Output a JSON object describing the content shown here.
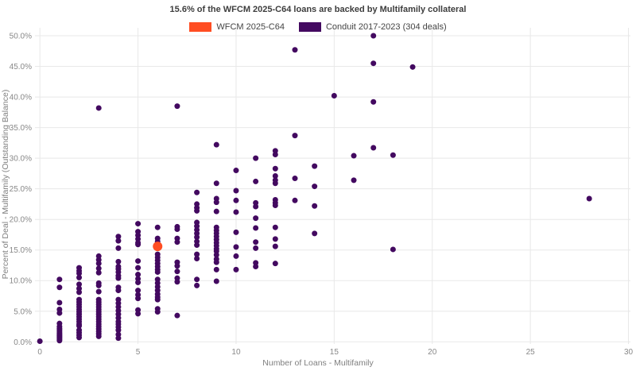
{
  "title": "15.6% of the WFCM 2025-C64 loans are backed by Multifamily collateral",
  "legend": {
    "items": [
      {
        "label": "WFCM 2025-C64",
        "color": "#ff4d22"
      },
      {
        "label": "Conduit 2017-2023 (304 deals)",
        "color": "#430960"
      }
    ]
  },
  "colors": {
    "grid": "#e8e8e8",
    "tick_text": "#888888",
    "background": "#ffffff"
  },
  "chart_data": {
    "type": "scatter",
    "title": "15.6% of the WFCM 2025-C64 loans are backed by Multifamily collateral",
    "xlabel": "Number of Loans - Multifamily",
    "ylabel": "Percent of Deal - Multifamily (Outstanding Balance)",
    "xlim": [
      0,
      30
    ],
    "ylim": [
      0,
      50
    ],
    "grid": true,
    "legend_position": "top-center",
    "x_ticks": [
      0,
      5,
      10,
      15,
      20,
      25,
      30
    ],
    "y_ticks": [
      0,
      5,
      10,
      15,
      20,
      25,
      30,
      35,
      40,
      45,
      50
    ],
    "y_tick_labels": [
      "0.0%",
      "5.0%",
      "10.0%",
      "15.0%",
      "20.0%",
      "25.0%",
      "30.0%",
      "35.0%",
      "40.0%",
      "45.0%",
      "50.0%"
    ],
    "series": [
      {
        "name": "Conduit 2017-2023 (304 deals)",
        "color": "#430960",
        "marker_diameter": 7,
        "points": [
          [
            0,
            0.1
          ],
          [
            1,
            10.2
          ],
          [
            1,
            8.9
          ],
          [
            1,
            6.4
          ],
          [
            1,
            5.3
          ],
          [
            1,
            4.7
          ],
          [
            1,
            3.0
          ],
          [
            1,
            2.5
          ],
          [
            1,
            2.2
          ],
          [
            1,
            2.0
          ],
          [
            1,
            1.8
          ],
          [
            1,
            1.6
          ],
          [
            1,
            1.4
          ],
          [
            1,
            1.2
          ],
          [
            1,
            1.0
          ],
          [
            1,
            0.8
          ],
          [
            1,
            0.6
          ],
          [
            1,
            0.4
          ],
          [
            1,
            0.2
          ],
          [
            2,
            12.1
          ],
          [
            2,
            11.6
          ],
          [
            2,
            11.2
          ],
          [
            2,
            10.5
          ],
          [
            2,
            9.4
          ],
          [
            2,
            8.7
          ],
          [
            2,
            8.1
          ],
          [
            2,
            6.9
          ],
          [
            2,
            6.5
          ],
          [
            2,
            6.1
          ],
          [
            2,
            5.7
          ],
          [
            2,
            5.3
          ],
          [
            2,
            4.9
          ],
          [
            2,
            4.5
          ],
          [
            2,
            4.1
          ],
          [
            2,
            3.7
          ],
          [
            2,
            3.3
          ],
          [
            2,
            2.9
          ],
          [
            2,
            2.6
          ],
          [
            2,
            1.9
          ],
          [
            2,
            1.5
          ],
          [
            2,
            1.1
          ],
          [
            2,
            0.7
          ],
          [
            3,
            38.2
          ],
          [
            3,
            14.0
          ],
          [
            3,
            13.4
          ],
          [
            3,
            12.8
          ],
          [
            3,
            12.0
          ],
          [
            3,
            11.3
          ],
          [
            3,
            9.6
          ],
          [
            3,
            9.2
          ],
          [
            3,
            8.2
          ],
          [
            3,
            6.9
          ],
          [
            3,
            6.5
          ],
          [
            3,
            6.1
          ],
          [
            3,
            5.7
          ],
          [
            3,
            5.3
          ],
          [
            3,
            4.9
          ],
          [
            3,
            4.5
          ],
          [
            3,
            4.1
          ],
          [
            3,
            3.7
          ],
          [
            3,
            3.3
          ],
          [
            3,
            2.9
          ],
          [
            3,
            2.5
          ],
          [
            3,
            2.1
          ],
          [
            3,
            1.7
          ],
          [
            3,
            1.3
          ],
          [
            3,
            0.9
          ],
          [
            4,
            17.2
          ],
          [
            4,
            16.5
          ],
          [
            4,
            15.3
          ],
          [
            4,
            13.1
          ],
          [
            4,
            12.3
          ],
          [
            4,
            11.9
          ],
          [
            4,
            11.4
          ],
          [
            4,
            10.8
          ],
          [
            4,
            10.4
          ],
          [
            4,
            8.9
          ],
          [
            4,
            8.4
          ],
          [
            4,
            6.9
          ],
          [
            4,
            6.3
          ],
          [
            4,
            5.7
          ],
          [
            4,
            5.1
          ],
          [
            4,
            4.5
          ],
          [
            4,
            3.9
          ],
          [
            4,
            3.3
          ],
          [
            4,
            2.9
          ],
          [
            4,
            2.4
          ],
          [
            4,
            1.9
          ],
          [
            4,
            1.2
          ],
          [
            4,
            0.6
          ],
          [
            5,
            19.3
          ],
          [
            5,
            18.0
          ],
          [
            5,
            17.4
          ],
          [
            5,
            16.8
          ],
          [
            5,
            16.2
          ],
          [
            5,
            15.9
          ],
          [
            5,
            13.2
          ],
          [
            5,
            12.1
          ],
          [
            5,
            11.0
          ],
          [
            5,
            10.3
          ],
          [
            5,
            9.7
          ],
          [
            5,
            8.4
          ],
          [
            5,
            7.7
          ],
          [
            5,
            7.1
          ],
          [
            5,
            5.2
          ],
          [
            5,
            4.6
          ],
          [
            6,
            18.7
          ],
          [
            6,
            16.9
          ],
          [
            6,
            16.4
          ],
          [
            6,
            14.3
          ],
          [
            6,
            13.8
          ],
          [
            6,
            13.3
          ],
          [
            6,
            12.8
          ],
          [
            6,
            12.3
          ],
          [
            6,
            11.8
          ],
          [
            6,
            11.4
          ],
          [
            6,
            10.2
          ],
          [
            6,
            9.6
          ],
          [
            6,
            9.0
          ],
          [
            6,
            8.4
          ],
          [
            6,
            7.8
          ],
          [
            6,
            7.3
          ],
          [
            6,
            6.9
          ],
          [
            6,
            5.4
          ],
          [
            6,
            4.9
          ],
          [
            7,
            38.5
          ],
          [
            7,
            18.8
          ],
          [
            7,
            18.4
          ],
          [
            7,
            16.9
          ],
          [
            7,
            16.3
          ],
          [
            7,
            13.0
          ],
          [
            7,
            12.4
          ],
          [
            7,
            11.5
          ],
          [
            7,
            10.4
          ],
          [
            7,
            9.8
          ],
          [
            7,
            4.3
          ],
          [
            8,
            24.4
          ],
          [
            8,
            22.5
          ],
          [
            8,
            21.9
          ],
          [
            8,
            21.4
          ],
          [
            8,
            19.5
          ],
          [
            8,
            18.9
          ],
          [
            8,
            18.3
          ],
          [
            8,
            17.7
          ],
          [
            8,
            17.1
          ],
          [
            8,
            16.4
          ],
          [
            8,
            15.8
          ],
          [
            8,
            14.3
          ],
          [
            8,
            13.6
          ],
          [
            8,
            10.2
          ],
          [
            8,
            9.2
          ],
          [
            9,
            32.2
          ],
          [
            9,
            25.9
          ],
          [
            9,
            23.4
          ],
          [
            9,
            22.8
          ],
          [
            9,
            21.3
          ],
          [
            9,
            18.7
          ],
          [
            9,
            18.2
          ],
          [
            9,
            17.7
          ],
          [
            9,
            17.2
          ],
          [
            9,
            16.7
          ],
          [
            9,
            16.2
          ],
          [
            9,
            15.7
          ],
          [
            9,
            15.2
          ],
          [
            9,
            14.8
          ],
          [
            9,
            14.2
          ],
          [
            9,
            13.5
          ],
          [
            9,
            13.0
          ],
          [
            9,
            11.8
          ],
          [
            9,
            9.9
          ],
          [
            10,
            28.0
          ],
          [
            10,
            24.7
          ],
          [
            10,
            23.1
          ],
          [
            10,
            21.2
          ],
          [
            10,
            17.9
          ],
          [
            10,
            15.5
          ],
          [
            10,
            14.0
          ],
          [
            10,
            11.8
          ],
          [
            11,
            30.0
          ],
          [
            11,
            26.2
          ],
          [
            11,
            22.7
          ],
          [
            11,
            22.1
          ],
          [
            11,
            20.2
          ],
          [
            11,
            18.6
          ],
          [
            11,
            16.3
          ],
          [
            11,
            15.3
          ],
          [
            11,
            12.9
          ],
          [
            11,
            12.3
          ],
          [
            12,
            31.2
          ],
          [
            12,
            30.6
          ],
          [
            12,
            28.3
          ],
          [
            12,
            27.1
          ],
          [
            12,
            26.4
          ],
          [
            12,
            25.9
          ],
          [
            12,
            23.2
          ],
          [
            12,
            22.7
          ],
          [
            12,
            22.3
          ],
          [
            12,
            18.7
          ],
          [
            12,
            16.8
          ],
          [
            12,
            15.6
          ],
          [
            12,
            12.8
          ],
          [
            13,
            47.7
          ],
          [
            13,
            33.7
          ],
          [
            13,
            26.7
          ],
          [
            13,
            23.1
          ],
          [
            14,
            28.7
          ],
          [
            14,
            25.4
          ],
          [
            14,
            22.2
          ],
          [
            14,
            17.7
          ],
          [
            15,
            40.2
          ],
          [
            16,
            30.4
          ],
          [
            16,
            26.4
          ],
          [
            17,
            50.0
          ],
          [
            17,
            45.5
          ],
          [
            17,
            39.2
          ],
          [
            17,
            31.7
          ],
          [
            18,
            30.5
          ],
          [
            18,
            15.1
          ],
          [
            19,
            44.9
          ],
          [
            28,
            23.4
          ]
        ]
      },
      {
        "name": "WFCM 2025-C64",
        "color": "#ff4d22",
        "marker_diameter": 12,
        "points": [
          [
            6,
            15.6
          ]
        ]
      }
    ]
  }
}
